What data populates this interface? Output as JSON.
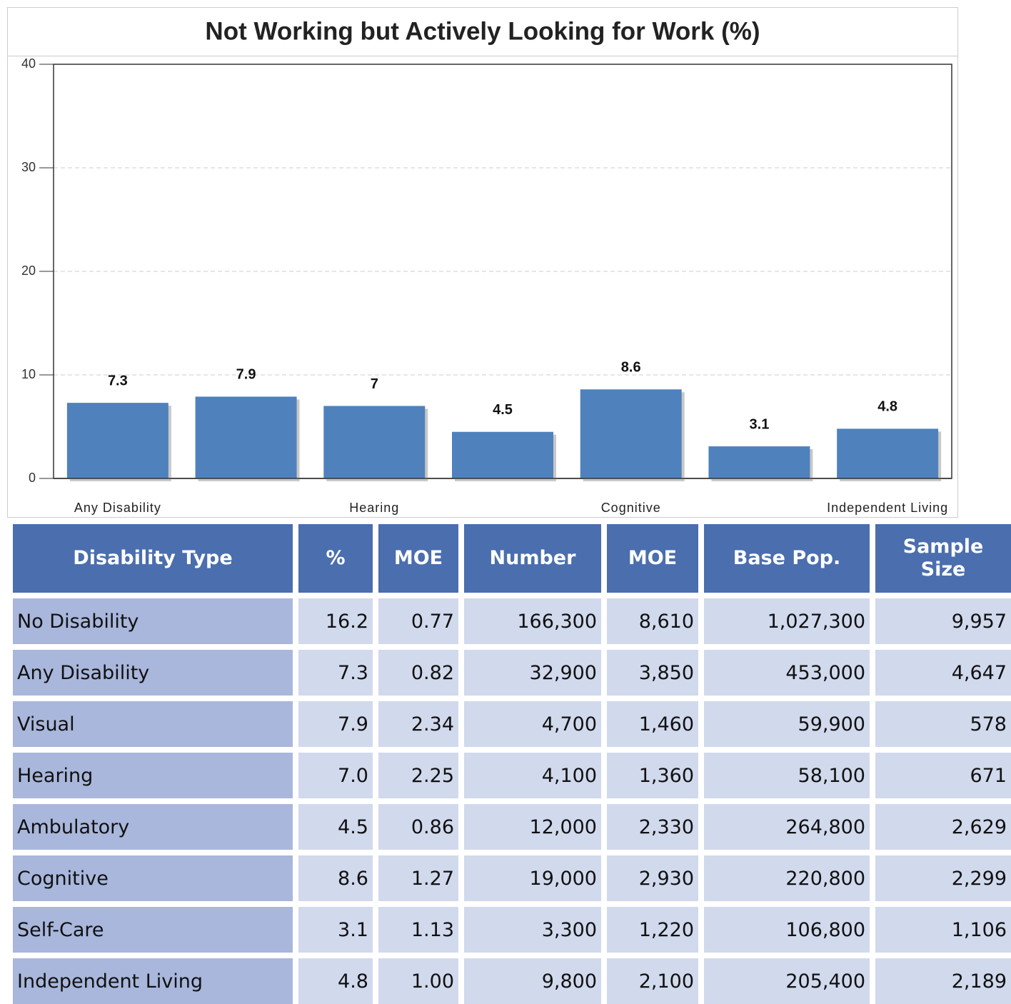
{
  "chart_data": {
    "type": "bar",
    "title": "Not Working but Actively Looking for Work (%)",
    "categories": [
      "Any Disability",
      null,
      "Hearing",
      null,
      "Cognitive",
      null,
      "Independent Living"
    ],
    "values": [
      7.3,
      7.9,
      7,
      4.5,
      8.6,
      3.1,
      4.8
    ],
    "color": "#4f81bd",
    "ylim": [
      0,
      40
    ],
    "yticks": [
      0,
      10,
      20,
      30,
      40
    ],
    "grid": true
  },
  "table": {
    "header": [
      "Disability Type",
      "%",
      "MOE",
      "Number",
      "MOE",
      "Base Pop.",
      "Sample Size"
    ],
    "rows": [
      [
        "No Disability",
        "16.2",
        "0.77",
        "166,300",
        "8,610",
        "1,027,300",
        "9,957"
      ],
      [
        "Any Disability",
        "7.3",
        "0.82",
        "32,900",
        "3,850",
        "453,000",
        "4,647"
      ],
      [
        "Visual",
        "7.9",
        "2.34",
        "4,700",
        "1,460",
        "59,900",
        "578"
      ],
      [
        "Hearing",
        "7.0",
        "2.25",
        "4,100",
        "1,360",
        "58,100",
        "671"
      ],
      [
        "Ambulatory",
        "4.5",
        "0.86",
        "12,000",
        "2,330",
        "264,800",
        "2,629"
      ],
      [
        "Cognitive",
        "8.6",
        "1.27",
        "19,000",
        "2,930",
        "220,800",
        "2,299"
      ],
      [
        "Self-Care",
        "3.1",
        "1.13",
        "3,300",
        "1,220",
        "106,800",
        "1,106"
      ],
      [
        "Independent Living",
        "4.8",
        "1.00",
        "9,800",
        "2,100",
        "205,400",
        "2,189"
      ]
    ]
  }
}
